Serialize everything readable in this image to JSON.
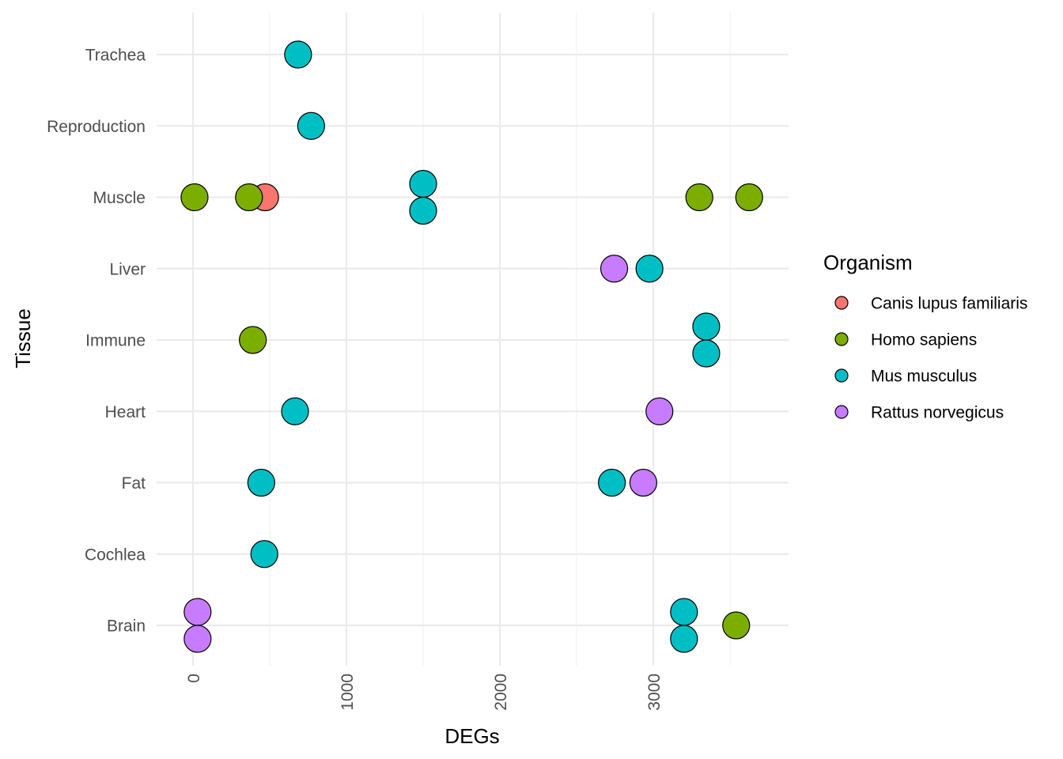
{
  "chart_data": {
    "type": "scatter",
    "xlabel": "DEGs",
    "ylabel": "Tissue",
    "x_ticks": [
      "0",
      "1000",
      "2000",
      "3000"
    ],
    "categories": [
      "Brain",
      "Cochlea",
      "Fat",
      "Heart",
      "Immune",
      "Liver",
      "Muscle",
      "Reproduction",
      "Trachea"
    ],
    "xlim": [
      -200,
      3850
    ],
    "grid": true,
    "legend": {
      "title": "Organism",
      "placement": "right",
      "entries": [
        {
          "name": "Canis lupus familiaris",
          "color": "#F8766D"
        },
        {
          "name": "Homo sapiens",
          "color": "#7CAE00"
        },
        {
          "name": "Mus musculus",
          "color": "#00BFC4"
        },
        {
          "name": "Rattus norvegicus",
          "color": "#C77CFF"
        }
      ]
    },
    "series": [
      {
        "name": "Canis lupus familiaris",
        "color": "#F8766D",
        "points": [
          {
            "tissue": "Muscle",
            "x": 470
          }
        ]
      },
      {
        "name": "Homo sapiens",
        "color": "#7CAE00",
        "points": [
          {
            "tissue": "Muscle",
            "x": 10
          },
          {
            "tissue": "Muscle",
            "x": 365
          },
          {
            "tissue": "Muscle",
            "x": 3300
          },
          {
            "tissue": "Muscle",
            "x": 3625
          },
          {
            "tissue": "Immune",
            "x": 390
          },
          {
            "tissue": "Brain",
            "x": 3540
          }
        ]
      },
      {
        "name": "Mus musculus",
        "color": "#00BFC4",
        "points": [
          {
            "tissue": "Trachea",
            "x": 685
          },
          {
            "tissue": "Reproduction",
            "x": 770
          },
          {
            "tissue": "Muscle",
            "x": 1500
          },
          {
            "tissue": "Muscle",
            "x": 1500
          },
          {
            "tissue": "Liver",
            "x": 2975
          },
          {
            "tissue": "Immune",
            "x": 3345
          },
          {
            "tissue": "Immune",
            "x": 3345
          },
          {
            "tissue": "Heart",
            "x": 665
          },
          {
            "tissue": "Fat",
            "x": 445
          },
          {
            "tissue": "Fat",
            "x": 2730
          },
          {
            "tissue": "Cochlea",
            "x": 465
          },
          {
            "tissue": "Brain",
            "x": 3200
          },
          {
            "tissue": "Brain",
            "x": 3200
          }
        ]
      },
      {
        "name": "Rattus norvegicus",
        "color": "#C77CFF",
        "points": [
          {
            "tissue": "Liver",
            "x": 2745
          },
          {
            "tissue": "Heart",
            "x": 3040
          },
          {
            "tissue": "Fat",
            "x": 2935
          },
          {
            "tissue": "Brain",
            "x": 30
          },
          {
            "tissue": "Brain",
            "x": 30
          }
        ]
      }
    ]
  }
}
